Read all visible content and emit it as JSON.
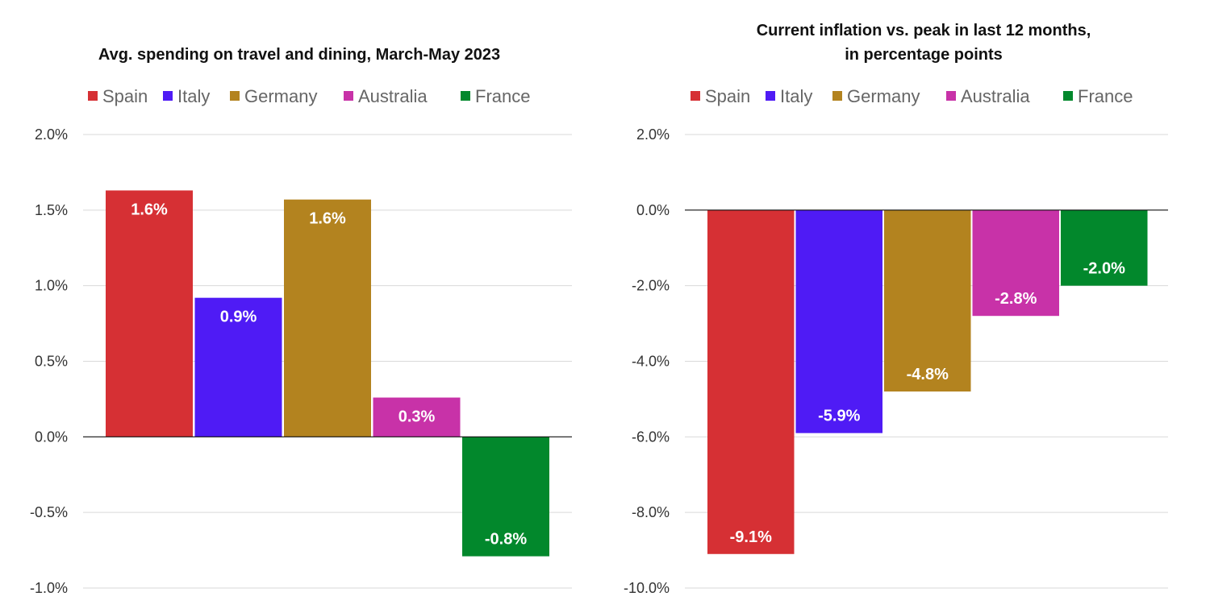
{
  "chart_data": [
    {
      "type": "bar",
      "title": "Avg. spending on travel and dining, March-May 2023",
      "series": [
        {
          "name": "Spain",
          "value": 1.63,
          "label": "1.6%",
          "color": "#d63034"
        },
        {
          "name": "Italy",
          "value": 0.92,
          "label": "0.9%",
          "color": "#4f1bf5"
        },
        {
          "name": "Germany",
          "value": 1.57,
          "label": "1.6%",
          "color": "#b3831f"
        },
        {
          "name": "Australia",
          "value": 0.26,
          "label": "0.3%",
          "color": "#c832a8"
        },
        {
          "name": "France",
          "value": -0.79,
          "label": "-0.8%",
          "color": "#02882c"
        }
      ],
      "yticks": [
        {
          "value": 2.0,
          "label": "2.0%"
        },
        {
          "value": 1.5,
          "label": "1.5%"
        },
        {
          "value": 1.0,
          "label": "1.0%"
        },
        {
          "value": 0.5,
          "label": "0.5%"
        },
        {
          "value": 0.0,
          "label": "0.0%"
        },
        {
          "value": -0.5,
          "label": "-0.5%"
        },
        {
          "value": -1.0,
          "label": "-1.0%"
        }
      ],
      "ylim": [
        -1.0,
        2.0
      ],
      "legend": "top",
      "grid": true
    },
    {
      "type": "bar",
      "title": "Current inflation vs. peak in last 12 months,",
      "subtitle": "in percentage points",
      "series": [
        {
          "name": "Spain",
          "value": -9.1,
          "label": "-9.1%",
          "color": "#d63034"
        },
        {
          "name": "Italy",
          "value": -5.9,
          "label": "-5.9%",
          "color": "#4f1bf5"
        },
        {
          "name": "Germany",
          "value": -4.8,
          "label": "-4.8%",
          "color": "#b3831f"
        },
        {
          "name": "Australia",
          "value": -2.8,
          "label": "-2.8%",
          "color": "#c832a8"
        },
        {
          "name": "France",
          "value": -2.0,
          "label": "-2.0%",
          "color": "#02882c"
        }
      ],
      "yticks": [
        {
          "value": 2.0,
          "label": "2.0%"
        },
        {
          "value": 0.0,
          "label": "0.0%"
        },
        {
          "value": -2.0,
          "label": "-2.0%"
        },
        {
          "value": -4.0,
          "label": "-4.0%"
        },
        {
          "value": -6.0,
          "label": "-6.0%"
        },
        {
          "value": -8.0,
          "label": "-8.0%"
        },
        {
          "value": -10.0,
          "label": "-10.0%"
        }
      ],
      "ylim": [
        -10.0,
        2.0
      ],
      "legend": "top",
      "grid": true
    }
  ]
}
